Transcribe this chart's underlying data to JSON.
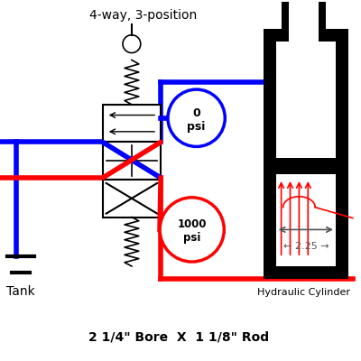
{
  "bg_color": "#ffffff",
  "title_4way": "4-way, 3-position",
  "title_cylinder": "Hydraulic Cylinder",
  "title_bore_rod": "2 1/4\" Bore  X  1 1/8\" Rod",
  "label_tank": "Tank",
  "label_0psi": "0\npsi",
  "label_1000psi": "1000\npsi",
  "label_225": "← 2.25 →",
  "line_blue": "#0000ff",
  "line_red": "#ff0000",
  "lw_pipe": 4.0,
  "lw_valve": 1.5,
  "gauge_lw": 2.5
}
